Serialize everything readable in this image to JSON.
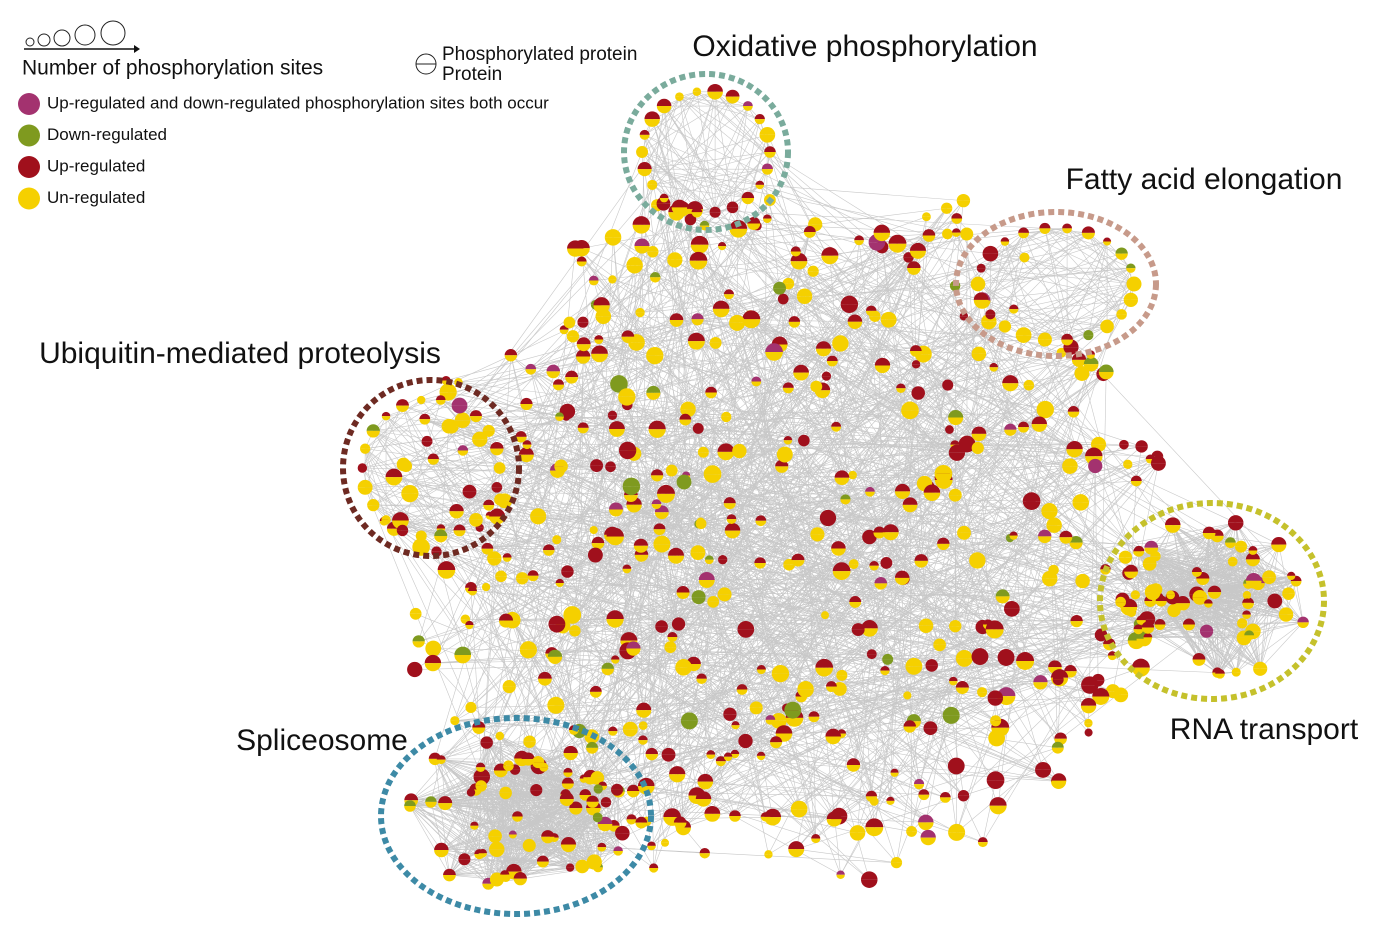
{
  "legend": {
    "size_label": "Number of phosphorylation sites",
    "phospho_label": "Phosphorylated protein",
    "protein_label": "Protein",
    "items": [
      {
        "label": "Up-regulated and down-regulated phosphorylation sites both occur",
        "color": "#a3326f"
      },
      {
        "label": "Down-regulated",
        "color": "#7f9a1f"
      },
      {
        "label": "Up-regulated",
        "color": "#a0101c"
      },
      {
        "label": "Un-regulated",
        "color": "#f5d000"
      }
    ]
  },
  "clusters": [
    {
      "label": "Oxidative phosphorylation",
      "color": "#7aab9c"
    },
    {
      "label": "Fatty acid elongation",
      "color": "#c79a8a"
    },
    {
      "label": "Ubiquitin-mediated proteolysis",
      "color": "#6e2a22"
    },
    {
      "label": "RNA transport",
      "color": "#c5c12c"
    },
    {
      "label": "Spliceosome",
      "color": "#3d8aa6"
    }
  ]
}
